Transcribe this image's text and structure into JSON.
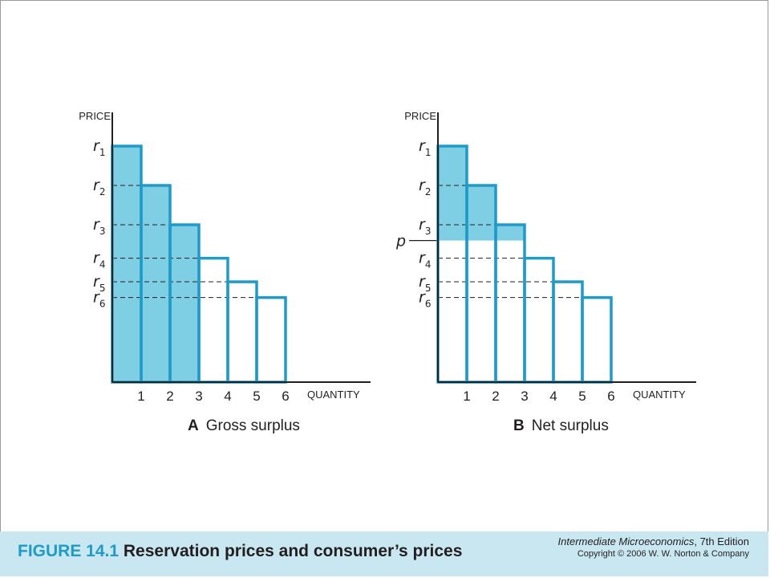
{
  "panels": [
    {
      "id": "A",
      "y_axis_label": "PRICE",
      "x_axis_label": "QUANTITY",
      "x_ticks": [
        "1",
        "2",
        "3",
        "4",
        "5",
        "6"
      ],
      "price_labels": [
        {
          "letter": "r",
          "sub": "1"
        },
        {
          "letter": "r",
          "sub": "2"
        },
        {
          "letter": "r",
          "sub": "3"
        },
        {
          "letter": "r",
          "sub": "4"
        },
        {
          "letter": "r",
          "sub": "5"
        },
        {
          "letter": "r",
          "sub": "6"
        }
      ],
      "caption_letter": "A",
      "caption_text": "Gross surplus",
      "shaded_units": 3,
      "market_price_label": ""
    },
    {
      "id": "B",
      "y_axis_label": "PRICE",
      "x_axis_label": "QUANTITY",
      "x_ticks": [
        "1",
        "2",
        "3",
        "4",
        "5",
        "6"
      ],
      "price_labels": [
        {
          "letter": "r",
          "sub": "1"
        },
        {
          "letter": "r",
          "sub": "2"
        },
        {
          "letter": "r",
          "sub": "3"
        },
        {
          "letter": "r",
          "sub": "4"
        },
        {
          "letter": "r",
          "sub": "5"
        },
        {
          "letter": "r",
          "sub": "6"
        }
      ],
      "caption_letter": "B",
      "caption_text": "Net surplus",
      "shaded_units": 3,
      "market_price_label": "p"
    }
  ],
  "reservation_prices": [
    6,
    5,
    4,
    3.15,
    2.55,
    2.15
  ],
  "market_price": 3.6,
  "footer": {
    "figure_number": "FIGURE 14.1",
    "figure_title": "Reservation prices and consumer’s prices",
    "book_title": "Intermediate Microeconomics",
    "edition": ", 7th Edition",
    "copyright": "Copyright © 2006 W. W. Norton & Company"
  },
  "colors": {
    "bar_stroke": "#1f9bc9",
    "bar_fill": "#7fcfe4",
    "axis": "#231f20",
    "footer_band": "#c8e7f1",
    "figure_number": "#1f9bc9"
  }
}
